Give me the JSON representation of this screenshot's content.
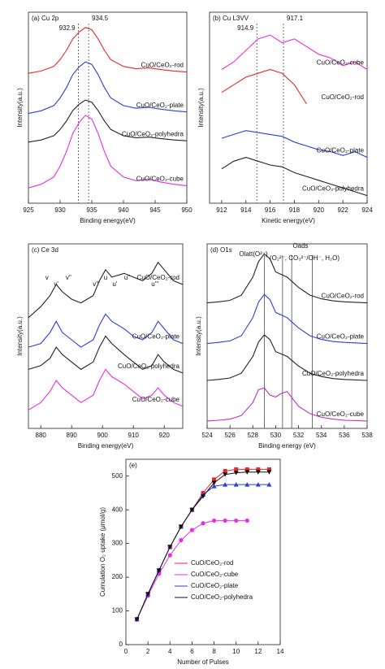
{
  "chart_data": [
    {
      "type": "line",
      "title": "(a) Cu 2p",
      "xlabel": "Binding energy(eV)",
      "ylabel": "Intensity(a.u.)",
      "xlim": [
        925,
        950
      ],
      "xticks": [
        925,
        930,
        935,
        940,
        945,
        950
      ],
      "ylim": [
        0,
        100
      ],
      "vlines": [
        932.9,
        934.5
      ],
      "x": [
        925,
        927,
        929,
        930,
        931,
        932,
        933,
        934,
        935,
        936,
        937,
        938,
        940,
        942,
        944,
        946,
        948,
        950
      ],
      "series": [
        {
          "name": "CuO/CeO₂-rod",
          "color": "#e8272a",
          "values": [
            68,
            69.2,
            71.6,
            75.2,
            80,
            86,
            89.6,
            92,
            90.8,
            86,
            80,
            75.2,
            71.6,
            70.4,
            70.9,
            69.9,
            69.2,
            68.7
          ]
        },
        {
          "name": "CuO/CeO₂-plate",
          "color": "#2a3fd6",
          "values": [
            47,
            48.4,
            51.1,
            55.1,
            60.5,
            67.3,
            71.3,
            74,
            72.7,
            67.3,
            60.5,
            55.1,
            51.1,
            49.7,
            50.2,
            49.2,
            48.4,
            47.8
          ]
        },
        {
          "name": "CuO/CeO₂-polyhedra",
          "color": "#222222",
          "values": [
            32,
            33.1,
            35.3,
            38.6,
            43,
            48.5,
            51.8,
            54,
            52.9,
            48.5,
            43,
            38.6,
            35.3,
            34.2,
            34.6,
            33.8,
            33.1,
            32.7
          ]
        },
        {
          "name": "CuO/CeO₂-cube",
          "color": "#e62ee6",
          "values": [
            8,
            9.9,
            13.7,
            19.4,
            27,
            36.5,
            42.2,
            46,
            44.1,
            36.5,
            27,
            19.4,
            13.7,
            11.8,
            12.6,
            11,
            9.9,
            9.1
          ]
        }
      ]
    },
    {
      "type": "line",
      "title": "(b) Cu L3VV",
      "xlabel": "Kinetic energy(eV)",
      "ylabel": "Intensity(a.u.)",
      "xlim": [
        911,
        924
      ],
      "xticks": [
        912,
        914,
        916,
        918,
        920,
        922,
        924
      ],
      "ylim": [
        0,
        100
      ],
      "vlines": [
        914.9,
        917.1
      ],
      "x": [
        912,
        913,
        914,
        915,
        916,
        917,
        918,
        919,
        920,
        921,
        922,
        923,
        924
      ],
      "series": [
        {
          "name": "CuO/CeO₂-cube",
          "color": "#e62ee6",
          "values": [
            70,
            74,
            80,
            86,
            88,
            84,
            86,
            82,
            78,
            76,
            72,
            74,
            70
          ]
        },
        {
          "name": "CuO/CeO₂-rod",
          "color": "#e8272a",
          "values": [
            58,
            62,
            66,
            68,
            70,
            68,
            62,
            52,
            null,
            null,
            null,
            null,
            null
          ]
        },
        {
          "name": "CuO/CeO₂-plate",
          "color": "#2a3fd6",
          "values": [
            34,
            36,
            38,
            37,
            36,
            35,
            32,
            30,
            28,
            27,
            25,
            27,
            24
          ]
        },
        {
          "name": "CuO/CeO₂-polyhedra",
          "color": "#222222",
          "values": [
            18,
            22,
            24,
            22,
            20,
            19,
            16,
            14,
            12,
            10,
            8,
            6,
            4
          ]
        }
      ]
    },
    {
      "type": "line",
      "title": "(c) Ce 3d",
      "xlabel": "Binding energy(eV)",
      "ylabel": "Intensity(a.u.)",
      "xlim": [
        876,
        926
      ],
      "xticks": [
        880,
        890,
        900,
        910,
        920
      ],
      "ylim": [
        0,
        100
      ],
      "peak_labels": [
        {
          "x": 882,
          "label": "v"
        },
        {
          "x": 885,
          "label": "v'"
        },
        {
          "x": 889,
          "label": "v''"
        },
        {
          "x": 898,
          "label": "v'''"
        },
        {
          "x": 901,
          "label": "u"
        },
        {
          "x": 904,
          "label": "u'"
        },
        {
          "x": 908,
          "label": "u''"
        },
        {
          "x": 917,
          "label": "u'''"
        }
      ],
      "x": [
        876,
        880,
        883,
        885,
        887,
        890,
        893,
        897,
        899,
        901,
        903,
        907,
        910,
        913,
        916,
        918,
        920,
        923,
        926
      ],
      "series": [
        {
          "name": "CuO/CeO₂-rod",
          "color": "#222222",
          "values": [
            60,
            66,
            72,
            78,
            74,
            70,
            68,
            72,
            80,
            86,
            82,
            84,
            82,
            80,
            84,
            90,
            86,
            80,
            78
          ]
        },
        {
          "name": "CuO/CeO₂-plate",
          "color": "#2a3fd6",
          "values": [
            44,
            46,
            52,
            58,
            52,
            48,
            44,
            48,
            56,
            62,
            58,
            54,
            50,
            48,
            52,
            58,
            54,
            48,
            46
          ]
        },
        {
          "name": "CuO/CeO₂-polyhedra",
          "color": "#222222",
          "values": [
            32,
            34,
            38,
            44,
            40,
            36,
            32,
            36,
            44,
            50,
            46,
            40,
            36,
            32,
            34,
            40,
            36,
            32,
            30
          ]
        },
        {
          "name": "CuO/CeO₂-cube",
          "color": "#e62ee6",
          "values": [
            10,
            14,
            20,
            26,
            22,
            18,
            14,
            18,
            26,
            32,
            28,
            24,
            20,
            16,
            18,
            22,
            18,
            14,
            12
          ]
        }
      ]
    },
    {
      "type": "line",
      "title": "(d) O1s",
      "xlabel": "Binding energy (eV)",
      "ylabel": "Intensity(a.u.)",
      "xlim": [
        524,
        538
      ],
      "xticks": [
        524,
        526,
        528,
        530,
        532,
        534,
        536,
        538
      ],
      "ylim": [
        0,
        100
      ],
      "vlines": [
        529,
        530.6,
        531.4,
        533.2
      ],
      "annotations": [
        "Olatt(O²⁻)",
        "Oads",
        "(O₂²⁻, CO₃²⁻/OH⁻, H₂O)"
      ],
      "x": [
        524,
        525,
        526,
        527,
        528,
        528.5,
        529,
        529.5,
        530,
        530.5,
        531,
        531.5,
        532,
        533,
        534,
        535,
        536,
        538
      ],
      "series": [
        {
          "name": "CuO/CeO₂-rod",
          "color": "#222222",
          "values": [
            68,
            68.6,
            69.4,
            72.2,
            82,
            90.4,
            94.6,
            91.8,
            84.8,
            83.4,
            82,
            79.2,
            76.4,
            72.2,
            70.2,
            69.1,
            68.6,
            68
          ]
        },
        {
          "name": "CuO/CeO₂-plate",
          "color": "#2a3fd6",
          "values": [
            46,
            46.6,
            47.4,
            50.2,
            60,
            68.4,
            72.6,
            69.8,
            62.8,
            61.4,
            60,
            57.2,
            54.4,
            50.2,
            48.2,
            47.1,
            46.6,
            46
          ]
        },
        {
          "name": "CuO/CeO₂-polyhedra",
          "color": "#222222",
          "values": [
            26,
            26.5,
            27.3,
            29.9,
            39,
            46.8,
            50.7,
            48.1,
            41.6,
            40.3,
            39,
            36.4,
            33.8,
            29.9,
            28.1,
            27,
            26.5,
            26
          ]
        },
        {
          "name": "CuO/CeO₂-cube",
          "color": "#c02ec0",
          "values": [
            4,
            4.4,
            5,
            7,
            14,
            21,
            22,
            18,
            17,
            19,
            20,
            16,
            12,
            8,
            6,
            5,
            4.4,
            4
          ]
        }
      ]
    },
    {
      "type": "line",
      "title": "(e)",
      "xlabel": "Number of Pulses",
      "ylabel": "Cumulation O₂ uptake (μmol/g)",
      "xlim": [
        0,
        14
      ],
      "xticks": [
        0,
        2,
        4,
        6,
        8,
        10,
        12,
        14
      ],
      "ylim": [
        0,
        550
      ],
      "yticks": [
        0,
        100,
        200,
        300,
        400,
        500
      ],
      "legend": "lower right",
      "x": [
        1,
        2,
        3,
        4,
        5,
        6,
        7,
        8,
        9,
        10,
        11,
        12,
        13
      ],
      "series": [
        {
          "name": "CuO/CeO₂-rod",
          "color": "#e8272a",
          "marker": "square",
          "values": [
            75,
            150,
            220,
            290,
            350,
            400,
            450,
            490,
            515,
            520,
            520,
            520,
            520
          ]
        },
        {
          "name": "CuO/CeO₂-cube",
          "color": "#e62ee6",
          "marker": "circle",
          "values": [
            75,
            145,
            210,
            265,
            310,
            340,
            360,
            368,
            368,
            368,
            368,
            null,
            null
          ]
        },
        {
          "name": "CuO/CeO₂-plate",
          "color": "#2a3fd6",
          "marker": "triangle",
          "values": [
            75,
            150,
            220,
            290,
            350,
            400,
            445,
            470,
            475,
            475,
            475,
            475,
            475
          ]
        },
        {
          "name": "CuO/CeO₂-polyhedra",
          "color": "#111111",
          "marker": "triangle-down",
          "values": [
            75,
            150,
            220,
            290,
            350,
            400,
            440,
            480,
            505,
            510,
            512,
            512,
            512
          ]
        }
      ]
    }
  ]
}
